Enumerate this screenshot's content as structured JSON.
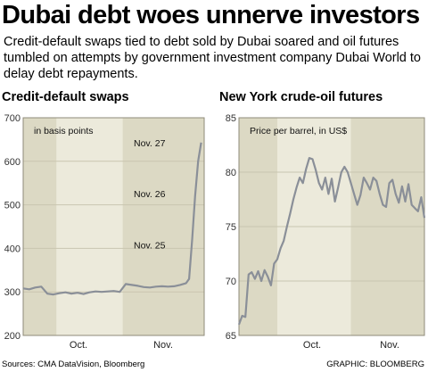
{
  "headline": "Dubai debt woes unnerve investors",
  "deck": "Credit-default swaps tied to debt sold by Dubai soared and oil futures tumbled on attempts by government investment company Dubai World to delay debt repayments.",
  "source": "Sources: CMA DataVision, Bloomberg",
  "credit": "GRAPHIC: BLOOMBERG",
  "colors": {
    "panel_bg": "#eceadb",
    "shade_bg": "#dcd9c4",
    "line": "#8a8f98",
    "grid": "#c9c5b0"
  },
  "chart_data": [
    {
      "type": "line",
      "title": "Credit-default swaps",
      "annotation": "in basis points",
      "ylim": [
        200,
        700
      ],
      "yticks": [
        200,
        300,
        400,
        500,
        600,
        700
      ],
      "ytick_labels": [
        "200",
        "300",
        "400",
        "500",
        "600",
        "700"
      ],
      "x_tick_labels": [
        "Oct.",
        "Nov."
      ],
      "x_range": [
        0,
        60
      ],
      "shaded_ranges": [
        [
          0,
          11
        ],
        [
          33,
          60
        ]
      ],
      "callouts": [
        {
          "label": "Nov. 25",
          "y": 408
        },
        {
          "label": "Nov. 26",
          "y": 526
        },
        {
          "label": "Nov. 27",
          "y": 643
        }
      ],
      "series": [
        {
          "x": [
            0,
            2,
            4,
            6,
            8,
            10,
            12,
            14,
            16,
            18,
            20,
            22,
            24,
            26,
            28,
            30,
            32,
            34,
            36,
            38,
            40,
            42,
            44,
            46,
            48,
            50,
            52,
            54,
            55,
            56,
            57,
            58,
            59
          ],
          "values": [
            308,
            306,
            310,
            312,
            296,
            294,
            297,
            299,
            296,
            298,
            295,
            299,
            301,
            300,
            301,
            302,
            300,
            318,
            316,
            314,
            311,
            310,
            312,
            313,
            312,
            313,
            316,
            320,
            330,
            420,
            520,
            600,
            643
          ]
        }
      ]
    },
    {
      "type": "line",
      "title": "New York crude-oil futures",
      "annotation": "Price per barrel, in US$",
      "ylim": [
        65,
        85
      ],
      "yticks": [
        65,
        70,
        75,
        80,
        85
      ],
      "ytick_labels": [
        "65",
        "70",
        "75",
        "80",
        "85"
      ],
      "x_tick_labels": [
        "Oct.",
        "Nov."
      ],
      "x_range": [
        0,
        58
      ],
      "shaded_ranges": [
        [
          0,
          12
        ],
        [
          35,
          58
        ]
      ],
      "series": [
        {
          "x": [
            0,
            1,
            2,
            3,
            4,
            5,
            6,
            7,
            8,
            9,
            10,
            11,
            12,
            13,
            14,
            15,
            16,
            17,
            18,
            19,
            20,
            21,
            22,
            23,
            24,
            25,
            26,
            27,
            28,
            29,
            30,
            31,
            32,
            33,
            34,
            35,
            36,
            37,
            38,
            39,
            40,
            41,
            42,
            43,
            44,
            45,
            46,
            47,
            48,
            49,
            50,
            51,
            52,
            53,
            54,
            55,
            56,
            57,
            58
          ],
          "values": [
            66.0,
            66.8,
            66.7,
            70.6,
            70.8,
            70.2,
            70.9,
            70.0,
            71.0,
            70.4,
            69.6,
            71.6,
            72.0,
            73.0,
            73.7,
            75.0,
            76.2,
            77.5,
            78.6,
            79.5,
            79.0,
            80.3,
            81.3,
            81.2,
            80.2,
            79.0,
            78.4,
            79.5,
            78.0,
            79.4,
            77.3,
            78.6,
            80.0,
            80.5,
            80.0,
            79.0,
            78.0,
            77.0,
            77.9,
            79.5,
            79.0,
            78.4,
            79.5,
            79.2,
            78.0,
            77.0,
            76.8,
            79.0,
            79.3,
            78.0,
            77.2,
            78.7,
            77.3,
            78.9,
            77.0,
            76.7,
            76.4,
            77.7,
            75.8
          ]
        }
      ]
    }
  ]
}
